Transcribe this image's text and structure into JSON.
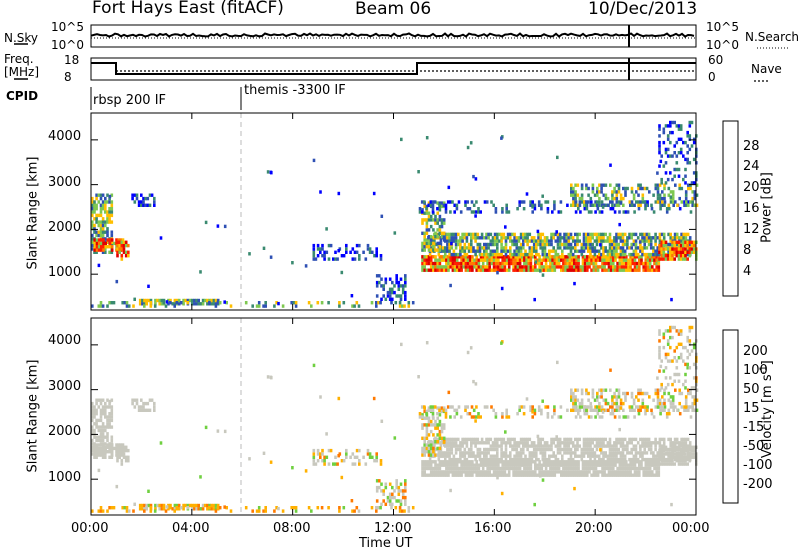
{
  "header": {
    "station": "Fort Hays East (fitACF)",
    "beam": "Beam 06",
    "date": "10/Dec/2013"
  },
  "noise_panel": {
    "left_label": "N.Sky",
    "left_ticks": [
      "10^5",
      "10^0"
    ],
    "right_ticks": [
      "10^5",
      "10^0"
    ],
    "right_label": "N.Search"
  },
  "freq_panel": {
    "left_label": "Freq.",
    "left_unit": "[MHz]",
    "left_ticks": [
      "18",
      "8"
    ],
    "right_ticks": [
      "60",
      "0"
    ],
    "right_label": "Nave"
  },
  "cpid": {
    "label": "CPID",
    "segments": [
      {
        "start_h": 0,
        "name": "rbsp 200 IF"
      },
      {
        "start_h": 6,
        "name": "themis -3300 IF"
      }
    ]
  },
  "chart_data": [
    {
      "type": "heatmap",
      "name": "power",
      "ylabel": "Slant Range [km]",
      "ylim": [
        200,
        4600
      ],
      "yticks": [
        "1000",
        "2000",
        "3000",
        "4000"
      ],
      "ytick_values": [
        1000,
        2000,
        3000,
        4000
      ],
      "colorbar": {
        "label": "Power [dB]",
        "ticks": [
          "4",
          "8",
          "12",
          "16",
          "20",
          "24",
          "28"
        ],
        "colors": [
          "#0000ff",
          "#2e50b4",
          "#3a8a70",
          "#7ec850",
          "#ffbf00",
          "#ff7a00",
          "#ff2000",
          "#e00000"
        ]
      }
    },
    {
      "type": "heatmap",
      "name": "velocity",
      "ylabel": "Slant Range [km]",
      "ylim": [
        200,
        4600
      ],
      "yticks": [
        "1000",
        "2000",
        "3000",
        "4000"
      ],
      "ytick_values": [
        1000,
        2000,
        3000,
        4000
      ],
      "colorbar": {
        "label": "Velocity [m s",
        "label_sup": "-1",
        "label_end": "]",
        "ticks": [
          "200",
          "100",
          "50",
          "15",
          "-15",
          "-50",
          "-100",
          "-200"
        ],
        "colors": [
          "#1d2fc8",
          "#2f5fb0",
          "#3e9a55",
          "#6fd040",
          "#c8c8be",
          "#ffb000",
          "#ff7a00",
          "#ff3300",
          "#e00000"
        ]
      }
    }
  ],
  "xaxis": {
    "label": "Time UT",
    "ticks": [
      "00:00",
      "04:00",
      "08:00",
      "12:00",
      "16:00",
      "20:00",
      "00:00"
    ],
    "tick_hours": [
      0,
      4,
      8,
      12,
      16,
      20,
      24
    ],
    "xlim": [
      0,
      24
    ]
  }
}
